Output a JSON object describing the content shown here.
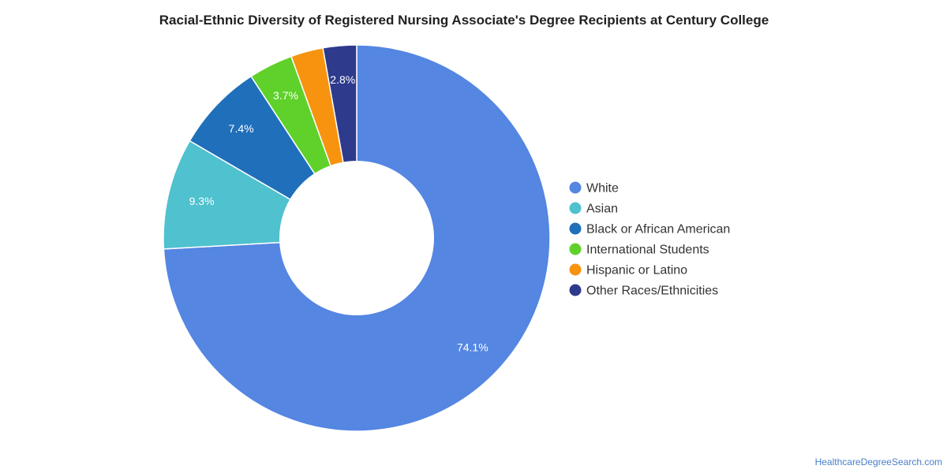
{
  "chart_data": {
    "type": "pie",
    "donut": true,
    "title": "Racial-Ethnic Diversity of Registered Nursing Associate's Degree Recipients at Century College",
    "legend_position": "right",
    "slices": [
      {
        "label": "White",
        "value": 74.1,
        "display": "74.1%",
        "color": "#5486e2"
      },
      {
        "label": "Asian",
        "value": 9.3,
        "display": "9.3%",
        "color": "#4fc1cf"
      },
      {
        "label": "Black or African American",
        "value": 7.4,
        "display": "7.4%",
        "color": "#1f6fba"
      },
      {
        "label": "International Students",
        "value": 3.7,
        "display": "3.7%",
        "color": "#5fd12a"
      },
      {
        "label": "Hispanic or Latino",
        "value": 2.7,
        "display": "",
        "color": "#f7930e"
      },
      {
        "label": "Other Races/Ethnicities",
        "value": 2.8,
        "display": "2.8%",
        "color": "#2e3a8c"
      }
    ]
  },
  "watermark": "HealthcareDegreeSearch.com"
}
